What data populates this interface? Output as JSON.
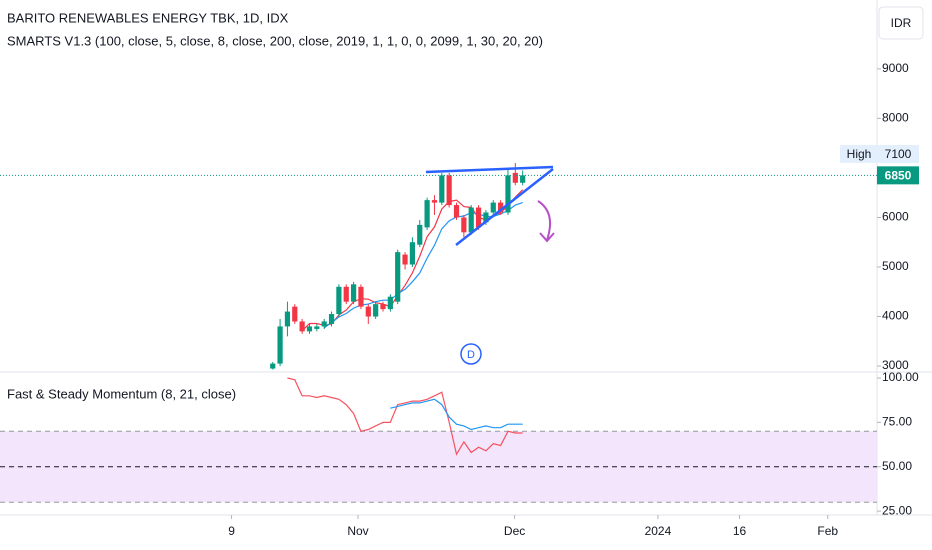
{
  "symbol_title": "BARITO RENEWABLES ENERGY TBK, 1D, IDX",
  "indicator_label": "SMARTS V1.3 (100, close, 5, close, 8, close, 200, close, 2019, 1, 1, 0, 0, 2099, 1, 30, 20, 20)",
  "currency": "IDR",
  "high_label": "High",
  "marker": "D",
  "chart_data": [
    {
      "type": "candlestick",
      "open": [
        2950,
        3050,
        3800,
        4200,
        3900,
        3700,
        3750,
        3800,
        3850,
        4050,
        4600,
        4300,
        4600,
        4200,
        4000,
        4250,
        4150,
        4300,
        5250,
        5050,
        5450,
        5800,
        6350,
        6300,
        6850,
        6250,
        6000,
        5700,
        6200,
        5900,
        6100,
        6300,
        6100,
        6900,
        6700
      ],
      "high": [
        3080,
        3950,
        4300,
        4250,
        3950,
        3850,
        3850,
        3950,
        4100,
        4650,
        4650,
        4700,
        4650,
        4250,
        4300,
        4300,
        4450,
        5350,
        5300,
        5600,
        5950,
        6400,
        6450,
        6900,
        6900,
        6300,
        6050,
        6250,
        6250,
        6150,
        6350,
        6350,
        7000,
        7100,
        6950
      ],
      "low": [
        2930,
        3000,
        3600,
        3850,
        3650,
        3650,
        3700,
        3750,
        3800,
        4000,
        4250,
        4250,
        4150,
        3850,
        3950,
        4100,
        4100,
        4250,
        4950,
        5000,
        5400,
        5750,
        6050,
        6250,
        6200,
        5950,
        5600,
        5650,
        5750,
        5850,
        6050,
        6050,
        6050,
        6650,
        6650
      ],
      "close": [
        3050,
        3800,
        4100,
        3900,
        3700,
        3800,
        3800,
        3900,
        4050,
        4600,
        4300,
        4650,
        4200,
        4000,
        4250,
        4150,
        4400,
        5300,
        5050,
        5500,
        5850,
        6350,
        6300,
        6850,
        6250,
        6000,
        5700,
        6200,
        5800,
        6100,
        6300,
        6100,
        6850,
        6700,
        6850
      ],
      "up_color": "#089981",
      "down_color": "#f23645",
      "series": [
        {
          "color": "#f23645",
          "values": [
            null,
            null,
            null,
            null,
            3710,
            3860,
            3860,
            3820,
            3850,
            4030,
            4130,
            4300,
            4360,
            4350,
            4280,
            4250,
            4200,
            4420,
            4630,
            4880,
            5220,
            5610,
            5810,
            6170,
            6320,
            6350,
            6220,
            6200,
            5990,
            5960,
            6020,
            6100,
            6230,
            6410,
            6560
          ]
        },
        {
          "color": "#2196f3",
          "values": [
            null,
            null,
            null,
            null,
            null,
            null,
            null,
            3770,
            3880,
            3990,
            4060,
            4170,
            4230,
            4250,
            4300,
            4330,
            4330,
            4460,
            4550,
            4700,
            4880,
            5180,
            5440,
            5770,
            5930,
            6010,
            6030,
            6100,
            6070,
            6020,
            6020,
            6070,
            6140,
            6250,
            6300
          ]
        }
      ],
      "xlim": [
        -37.1,
        82.2
      ],
      "xticks": [
        {
          "value": -5.6,
          "label": "9"
        },
        {
          "value": 11.6,
          "label": "Nov"
        },
        {
          "value": 32.9,
          "label": "Dec"
        },
        {
          "value": 52.4,
          "label": "2024"
        },
        {
          "value": 63.5,
          "label": "16"
        },
        {
          "value": 75.5,
          "label": "Feb"
        }
      ],
      "ylim": [
        2880,
        10390
      ],
      "yticks": [
        3000,
        4000,
        5000,
        6000,
        8000,
        9000
      ],
      "last_price": 6850,
      "session_high": 7100
    },
    {
      "type": "line",
      "title": "Fast & Steady Momentum (8, 21, close)",
      "series": [
        {
          "color": "#f7525f",
          "values": [
            null,
            null,
            100,
            99,
            90,
            90,
            89,
            90,
            89,
            88,
            85,
            80,
            70,
            71,
            73,
            75,
            75,
            85,
            86,
            87,
            87,
            88,
            90,
            92,
            75,
            57,
            64,
            58,
            61,
            59,
            63,
            62,
            70,
            69,
            69
          ]
        },
        {
          "color": "#2196f3",
          "values": [
            null,
            null,
            null,
            null,
            null,
            null,
            null,
            null,
            null,
            null,
            null,
            null,
            null,
            null,
            null,
            null,
            83,
            84,
            85,
            86,
            86,
            87,
            88,
            85,
            78,
            74,
            73,
            71,
            72,
            73,
            72,
            72,
            74,
            74,
            74
          ]
        }
      ],
      "ylim": [
        22.8,
        103.4
      ],
      "yticks": [
        {
          "value": 25,
          "label": "25.00"
        },
        {
          "value": 50,
          "label": "50.00"
        },
        {
          "value": 75,
          "label": "75.00"
        },
        {
          "value": 100,
          "label": "100.00"
        }
      ],
      "band": [
        30,
        70
      ],
      "band_color": "#f3e5fb",
      "midline": 50
    }
  ]
}
